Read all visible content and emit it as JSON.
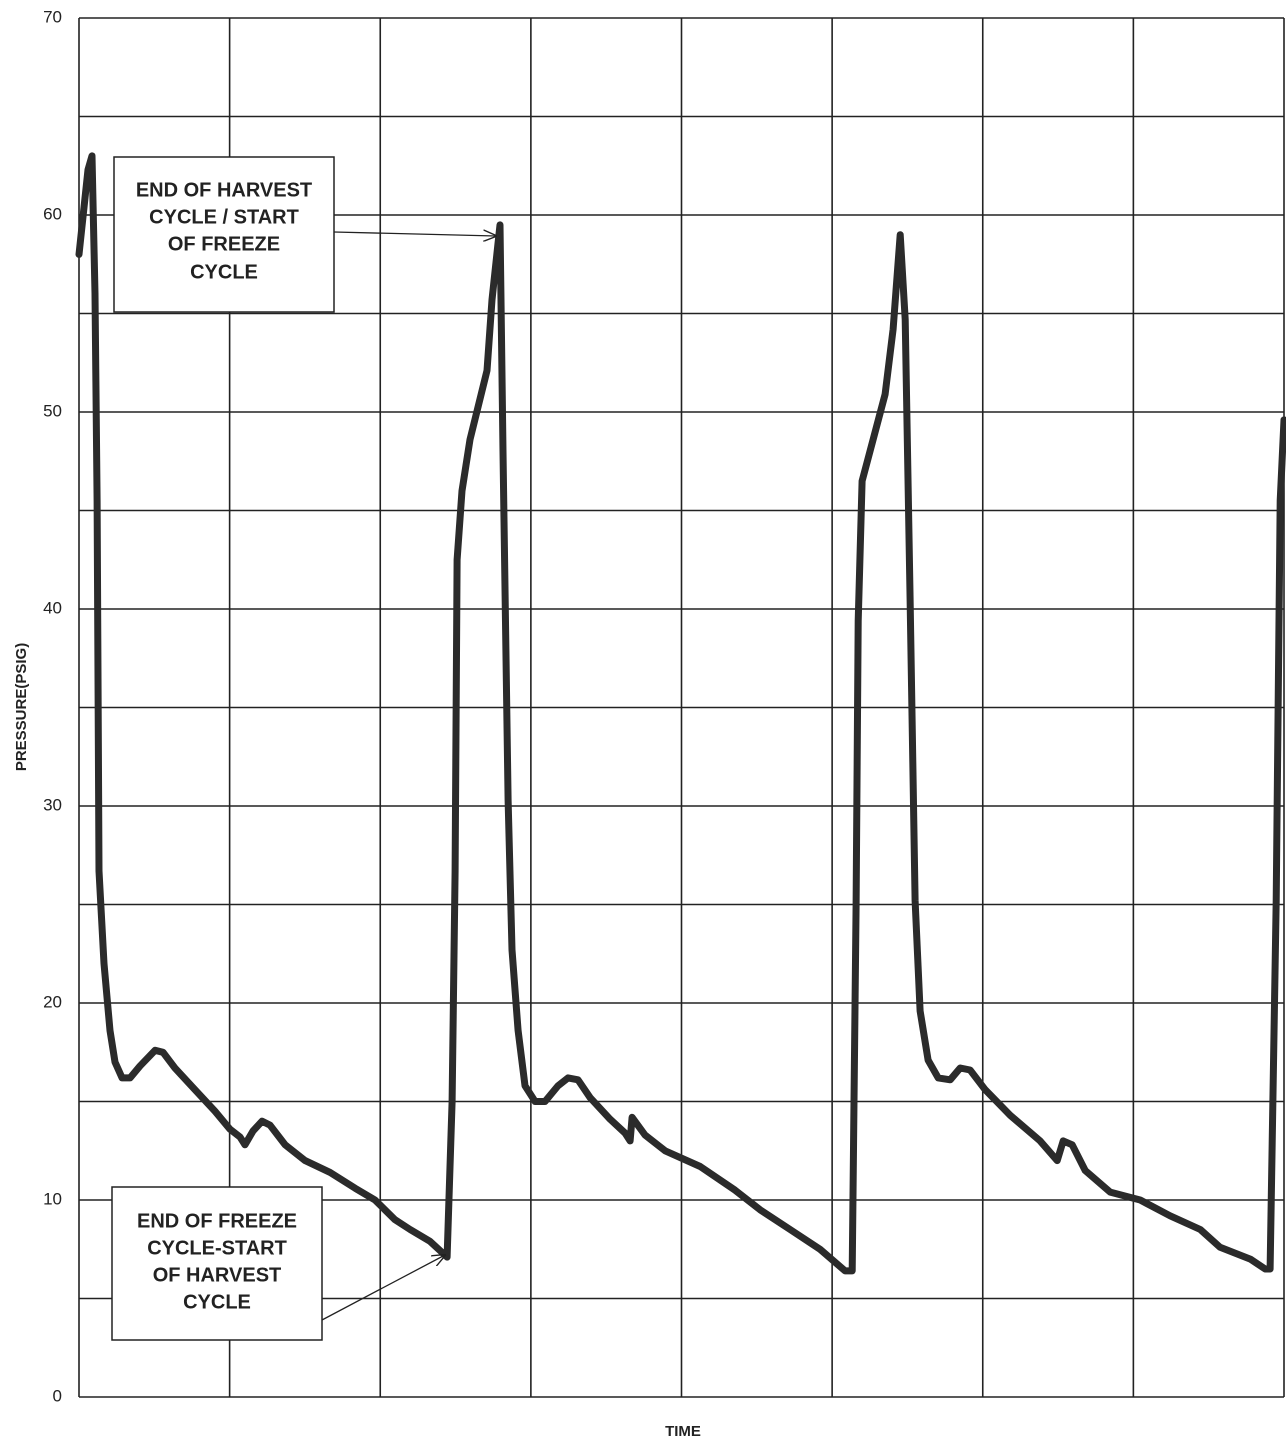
{
  "chart_data": {
    "type": "line",
    "x_label": "TIME",
    "y_label": "PRESSURE(PSIG)",
    "annotations": [
      {
        "lines": [
          "END OF HARVEST",
          "CYCLE / START",
          "OF FREEZE",
          "CYCLE"
        ]
      },
      {
        "lines": [
          "END OF FREEZE",
          "CYCLE-START",
          "OF HARVEST",
          "CYCLE"
        ]
      }
    ],
    "xlim": [
      0,
      8
    ],
    "xticks": [
      0,
      1,
      2,
      3,
      4,
      5,
      6,
      7,
      8
    ],
    "xtick_labels": false,
    "ylim": [
      0,
      70
    ],
    "yticks": [
      0,
      10,
      20,
      30,
      40,
      50,
      60,
      70
    ],
    "ygrid": [
      0,
      5,
      10,
      15,
      20,
      25,
      30,
      35,
      40,
      45,
      50,
      55,
      60,
      65,
      70
    ],
    "grid": true,
    "series": [
      {
        "color": "#2b2b2b",
        "x": [
          0,
          0.06,
          0.086,
          0.106,
          0.12,
          0.133,
          0.166,
          0.206,
          0.239,
          0.286,
          0.339,
          0.405,
          0.505,
          0.558,
          0.637,
          0.77,
          0.903,
          1.002,
          1.069,
          1.102,
          1.155,
          1.215,
          1.268,
          1.368,
          1.501,
          1.667,
          1.833,
          1.965,
          2.098,
          2.198,
          2.331,
          2.444,
          2.477,
          2.497,
          2.51,
          2.543,
          2.596,
          2.709,
          2.742,
          2.795,
          2.815,
          2.849,
          2.875,
          2.915,
          2.961,
          3.028,
          3.094,
          3.181,
          3.247,
          3.313,
          3.393,
          3.526,
          3.625,
          3.659,
          3.672,
          3.758,
          3.891,
          4.124,
          4.356,
          4.522,
          4.721,
          4.92,
          5.086,
          5.133,
          5.159,
          5.173,
          5.199,
          5.286,
          5.352,
          5.405,
          5.452,
          5.485,
          5.518,
          5.551,
          5.584,
          5.637,
          5.704,
          5.784,
          5.85,
          5.916,
          6.016,
          6.182,
          6.381,
          6.494,
          6.534,
          6.594,
          6.68,
          6.846,
          7.045,
          7.244,
          7.444,
          7.576,
          7.776,
          7.875,
          7.908,
          7.948,
          7.975,
          8.0
        ],
        "values": [
          58,
          62.3,
          63,
          56,
          45.5,
          26.7,
          22,
          18.6,
          17,
          16.2,
          16.2,
          16.8,
          17.6,
          17.5,
          16.7,
          15.6,
          14.5,
          13.6,
          13.2,
          12.8,
          13.5,
          14,
          13.8,
          12.8,
          12,
          11.4,
          10.6,
          10,
          9,
          8.5,
          7.9,
          7.1,
          15,
          26.7,
          42.5,
          46,
          48.6,
          52.1,
          55.7,
          59.5,
          48,
          30.3,
          22.7,
          18.6,
          15.8,
          15,
          15,
          15.8,
          16.2,
          16.1,
          15.2,
          14.1,
          13.4,
          13,
          14.2,
          13.3,
          12.5,
          11.7,
          10.5,
          9.5,
          8.5,
          7.5,
          6.4,
          6.4,
          25,
          39.4,
          46.5,
          49,
          50.9,
          54.2,
          59,
          54.7,
          40.5,
          25.2,
          19.6,
          17.1,
          16.2,
          16.1,
          16.7,
          16.6,
          15.6,
          14.3,
          13,
          12,
          13,
          12.8,
          11.5,
          10.4,
          10,
          9.2,
          8.5,
          7.6,
          7,
          6.5,
          6.5,
          25.2,
          45.5,
          49.6
        ]
      }
    ]
  }
}
